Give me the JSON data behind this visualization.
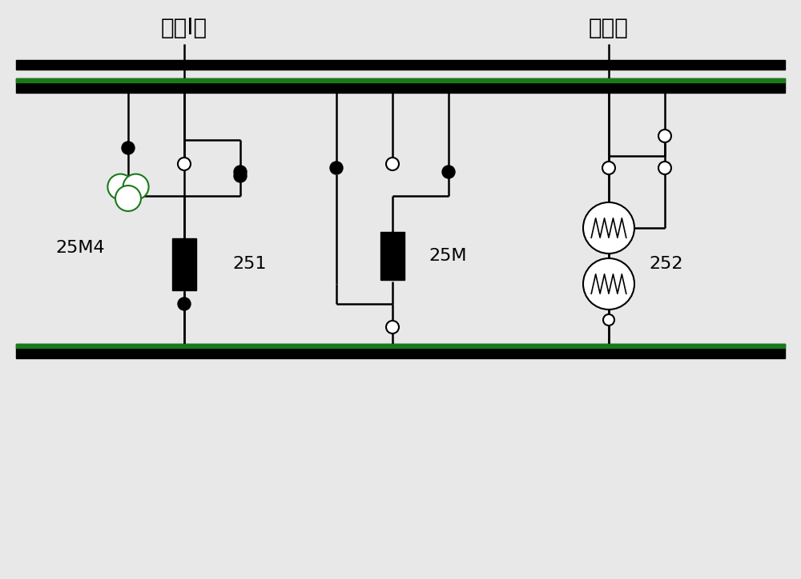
{
  "title1": "兜围I路",
  "title2": "半兜线",
  "label_25M4": "25M4",
  "label_251": "251",
  "label_25M": "25M",
  "label_252": "252",
  "bg_color": "#e8e8e8",
  "bus_green_color": "#1a7a1a",
  "font_size_title": 20,
  "font_size_label": 16,
  "figsize": [
    10.0,
    7.24
  ]
}
